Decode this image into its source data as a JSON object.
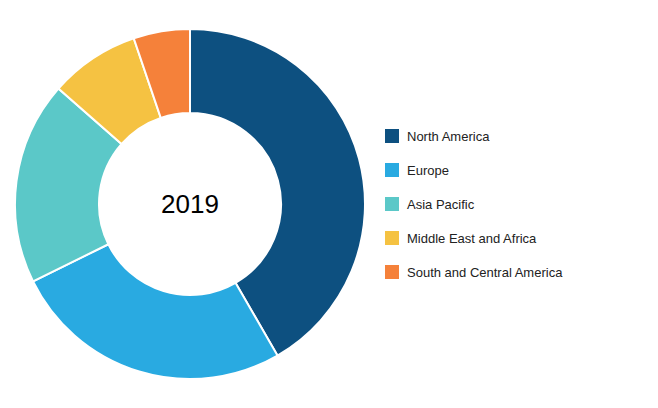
{
  "chart_data": {
    "type": "donut",
    "center_text": "2019",
    "categories": [
      "North America",
      "Europe",
      "Asia Pacific",
      "Middle East and Africa",
      "South and Central America"
    ],
    "values": [
      40,
      25,
      18,
      8,
      5
    ],
    "colors": [
      "#0d5080",
      "#29aae1",
      "#5bc8c8",
      "#f5c242",
      "#f5813a"
    ],
    "legend": "right"
  }
}
